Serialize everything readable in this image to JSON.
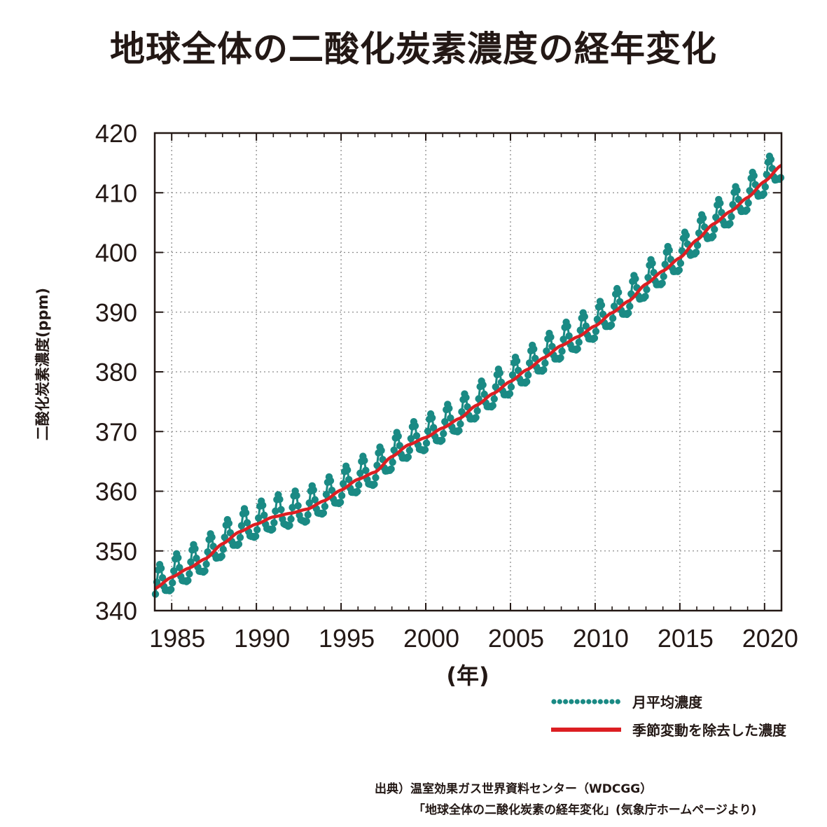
{
  "title": "地球全体の二酸化炭素濃度の経年変化",
  "colors": {
    "monthly": "#1a8a84",
    "trend": "#dc1e22",
    "axis": "#231815",
    "grid": "#8c8c8c"
  },
  "chart_data": {
    "type": "line",
    "title": "地球全体の二酸化炭素濃度の経年変化",
    "xlabel": "(年)",
    "ylabel": "二酸化炭素濃度(ppm)",
    "xlim": [
      1984.0,
      2021.0
    ],
    "ylim": [
      340,
      420
    ],
    "grid": true,
    "x_ticks": [
      1985,
      1990,
      1995,
      2000,
      2005,
      2010,
      2015,
      2020
    ],
    "x_tick_labels": [
      "1985",
      "1990",
      "1995",
      "2000",
      "2005",
      "2010",
      "2015",
      "2020"
    ],
    "y_ticks": [
      340,
      350,
      360,
      370,
      380,
      390,
      400,
      410,
      420
    ],
    "y_tick_labels": [
      "340",
      "350",
      "360",
      "370",
      "380",
      "390",
      "400",
      "410",
      "420"
    ],
    "legend_position": "bottom-right",
    "series": [
      {
        "name": "月平均濃度",
        "style": "dotted-markers",
        "seasonal_amplitude_ppm": 3.4,
        "note": "monthly values = trend + seasonal cycle (max ~Apr, min ~Sep)"
      },
      {
        "name": "季節変動を除去した濃度",
        "style": "solid",
        "x": [
          1984,
          1985,
          1986,
          1987,
          1988,
          1989,
          1990,
          1991,
          1992,
          1993,
          1994,
          1995,
          1996,
          1997,
          1998,
          1999,
          2000,
          2001,
          2002,
          2003,
          2004,
          2005,
          2006,
          2007,
          2008,
          2009,
          2010,
          2011,
          2012,
          2013,
          2014,
          2015,
          2016,
          2017,
          2018,
          2019,
          2020,
          2021
        ],
        "values": [
          343.7,
          345.6,
          347.1,
          348.7,
          351.2,
          353.2,
          354.5,
          355.7,
          356.3,
          357.0,
          358.4,
          360.2,
          362.0,
          363.2,
          365.8,
          367.8,
          369.0,
          370.6,
          372.2,
          374.4,
          376.4,
          378.4,
          380.4,
          382.4,
          384.4,
          385.9,
          387.7,
          389.9,
          391.9,
          394.7,
          396.9,
          399.1,
          402.1,
          404.8,
          406.9,
          409.2,
          411.9,
          414.6
        ]
      }
    ]
  },
  "legend": {
    "items": [
      {
        "label": "月平均濃度"
      },
      {
        "label": "季節変動を除去した濃度"
      }
    ]
  },
  "source": {
    "line1": "出典）温室効果ガス世界資料センター（WDCGG）",
    "line2": "「地球全体の二酸化炭素の経年変化」(気象庁ホームページより)"
  }
}
